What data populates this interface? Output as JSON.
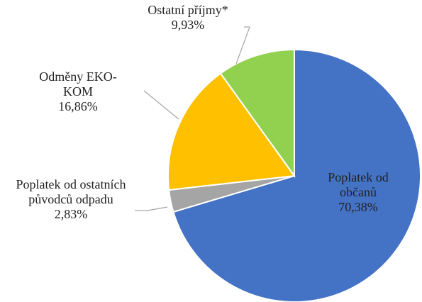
{
  "chart_data": {
    "type": "pie",
    "categories": [
      "Poplatek od občanů",
      "Poplatek od ostatních původců odpadu",
      "Odměny EKO-KOM",
      "Ostatní příjmy*"
    ],
    "values": [
      70.38,
      2.83,
      16.86,
      9.93
    ],
    "value_labels": [
      "70,38%",
      "2,83%",
      "16,86%",
      "9,93%"
    ],
    "colors": [
      "#4472c4",
      "#a5a5a5",
      "#ffc000",
      "#92d050"
    ]
  }
}
